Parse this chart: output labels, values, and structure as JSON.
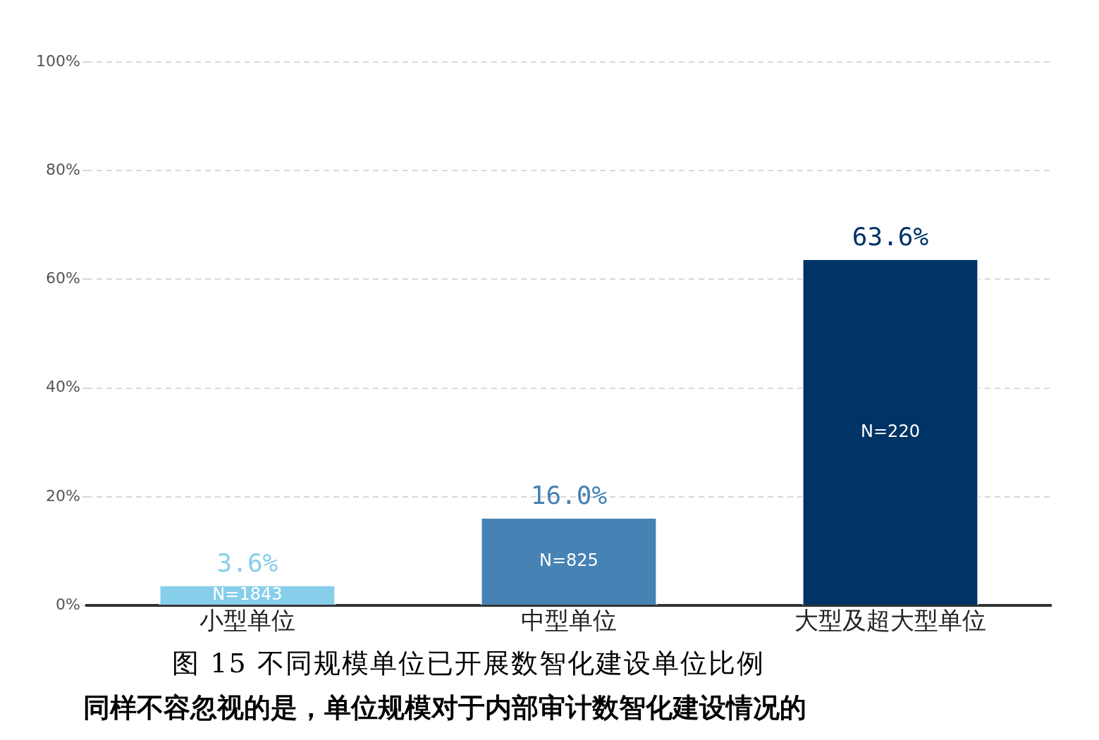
{
  "chart_data": {
    "type": "bar",
    "title": "图 15 不同规模单位已开展数智化建设单位比例",
    "categories": [
      "小型单位",
      "中型单位",
      "大型及超大型单位"
    ],
    "values": [
      3.6,
      16.0,
      63.6
    ],
    "colors": [
      "#87ceeb",
      "#4682b4",
      "#003366"
    ],
    "value_labels": [
      "3.6%",
      "16.0%",
      "63.6%"
    ],
    "ylim": [
      0,
      100
    ],
    "yticks": [
      {
        "value": 0,
        "label": "0%"
      },
      {
        "value": 20,
        "label": "20%"
      },
      {
        "value": 40,
        "label": "40%"
      },
      {
        "value": 60,
        "label": "60%"
      },
      {
        "value": 80,
        "label": "80%"
      },
      {
        "value": 100,
        "label": "100%"
      }
    ],
    "grid": "y",
    "legend": false,
    "annotations": [
      "N=1843",
      "N=825",
      "N=220",
      "同样不容忽视的是，单位规模对于内部审计数智化建设情况的"
    ]
  }
}
